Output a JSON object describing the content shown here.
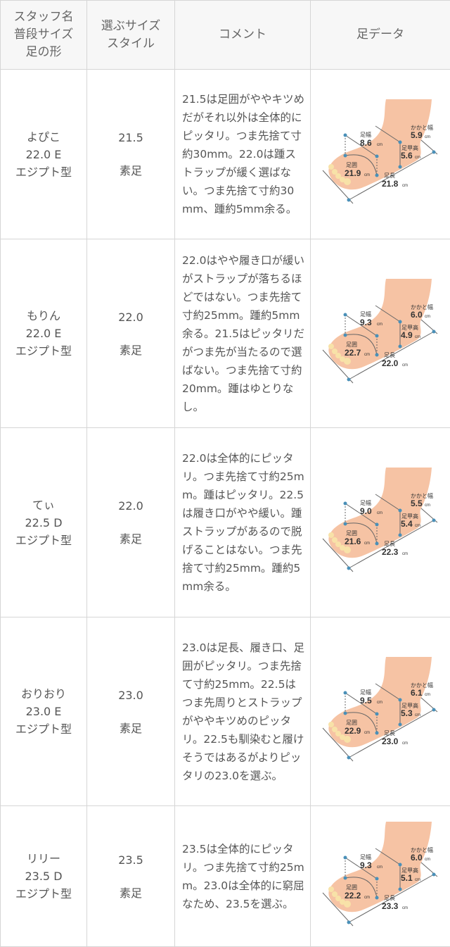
{
  "header": {
    "col1": [
      "スタッフ名",
      "普段サイズ",
      "足の形"
    ],
    "col2": [
      "選ぶサイズ",
      "スタイル"
    ],
    "col3": "コメント",
    "col4": "足データ"
  },
  "foot_labels": {
    "width": "足幅",
    "heel_width": "かかと幅",
    "instep_height": "足甲高",
    "girth": "足囲",
    "length": "足長",
    "unit": "cm"
  },
  "rows": [
    {
      "name": "よぴこ",
      "usual_size": "22.0 E",
      "foot_shape": "エジプト型",
      "chosen_size": "21.5",
      "style": "素足",
      "comment": "21.5は足囲がややキツめだがそれ以外は全体的にピッタリ。つま先捨て寸約30mm。22.0は踵ストラップが緩く選ばない。つま先捨て寸約30mm、踵約5mm余る。",
      "foot": {
        "width": "8.6",
        "heel_width": "5.9",
        "instep_height": "5.6",
        "girth": "21.9",
        "length": "21.8"
      }
    },
    {
      "name": "もりん",
      "usual_size": "22.0 E",
      "foot_shape": "エジプト型",
      "chosen_size": "22.0",
      "style": "素足",
      "comment": "22.0はやや履き口が緩いがストラップが落ちるほどではない。つま先捨て寸約25mm。踵約5mm余る。21.5はピッタリだがつま先が当たるので選ばない。つま先捨て寸約20mm。踵はゆとりなし。",
      "foot": {
        "width": "9.3",
        "heel_width": "6.0",
        "instep_height": "4.9",
        "girth": "22.7",
        "length": "22.0"
      }
    },
    {
      "name": "てぃ",
      "usual_size": "22.5 D",
      "foot_shape": "エジプト型",
      "chosen_size": "22.0",
      "style": "素足",
      "comment": "22.0は全体的にピッタリ。つま先捨て寸約25mm。踵はピッタリ。22.5は履き口がやや緩い。踵ストラップがあるので脱げることはない。つま先捨て寸約25mm。踵約5mm余る。",
      "foot": {
        "width": "9.0",
        "heel_width": "5.5",
        "instep_height": "5.4",
        "girth": "21.6",
        "length": "22.3"
      }
    },
    {
      "name": "おりおり",
      "usual_size": "23.0 E",
      "foot_shape": "エジプト型",
      "chosen_size": "23.0",
      "style": "素足",
      "comment": "23.0は足長、履き口、足囲がピッタリ。つま先捨て寸約25mm。22.5はつま先周りとストラップがややキツめのピッタリ。22.5も馴染むと履けそうではあるがよりピッタリの23.0を選ぶ。",
      "foot": {
        "width": "9.5",
        "heel_width": "6.1",
        "instep_height": "5.3",
        "girth": "22.9",
        "length": "23.0"
      }
    },
    {
      "name": "リリー",
      "usual_size": "23.5 D",
      "foot_shape": "エジプト型",
      "chosen_size": "23.5",
      "style": "素足",
      "comment": "23.5は全体的にピッタリ。つま先捨て寸約25mm。23.0は全体的に窮屈なため、23.5を選ぶ。",
      "foot": {
        "width": "9.3",
        "heel_width": "6.0",
        "instep_height": "5.1",
        "girth": "22.2",
        "length": "23.3"
      }
    }
  ]
}
